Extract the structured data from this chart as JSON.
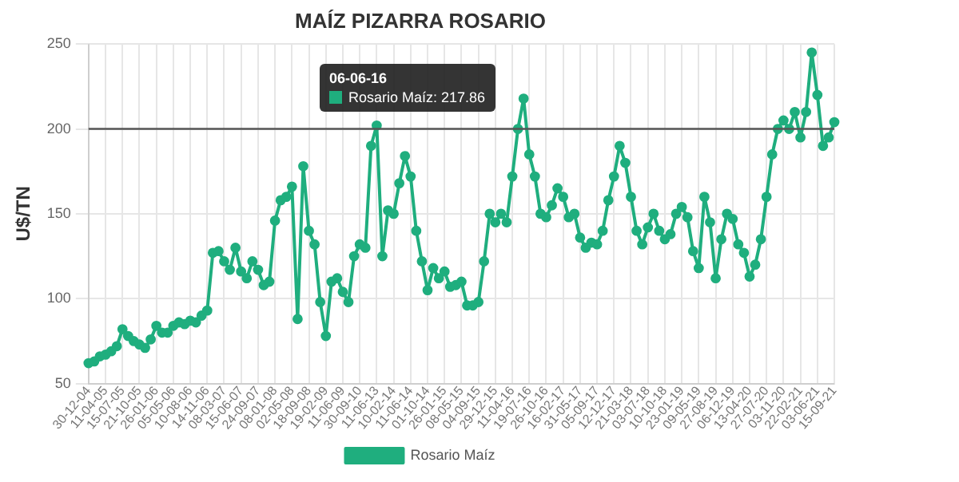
{
  "chart_data": {
    "type": "line",
    "title": "MAÍZ PIZARRA ROSARIO",
    "ylabel": "U$/TN",
    "categories": [
      "30-12-04",
      null,
      null,
      "11-04-05",
      null,
      null,
      "15-07-05",
      null,
      null,
      "21-10-05",
      null,
      null,
      "26-01-06",
      null,
      null,
      "05-05-06",
      null,
      null,
      "10-08-06",
      null,
      null,
      "14-11-06",
      null,
      null,
      "08-03-07",
      null,
      null,
      "15-06-07",
      null,
      null,
      "24-09-07",
      null,
      null,
      "08-01-08",
      null,
      null,
      "02-05-08",
      null,
      null,
      "18-09-08",
      null,
      null,
      "19-02-09",
      null,
      null,
      "11-06-09",
      null,
      null,
      "30-09-10",
      null,
      null,
      "11-06-13",
      null,
      null,
      "10-02-14",
      null,
      null,
      "11-06-14",
      null,
      null,
      "01-10-14",
      null,
      null,
      "26-01-15",
      null,
      null,
      "08-05-15",
      null,
      null,
      "04-09-15",
      null,
      null,
      "29-12-15",
      null,
      null,
      "11-04-16",
      null,
      null,
      "19-07-16",
      null,
      null,
      "26-10-16",
      null,
      null,
      "16-02-17",
      null,
      null,
      "31-05-17",
      null,
      null,
      "05-09-17",
      null,
      null,
      "12-12-17",
      null,
      null,
      "21-03-18",
      null,
      null,
      "03-07-18",
      null,
      null,
      "10-10-18",
      null,
      null,
      "23-01-19",
      null,
      null,
      "09-05-19",
      null,
      null,
      "27-08-19",
      null,
      null,
      "06-12-19",
      null,
      null,
      "13-04-20",
      null,
      null,
      "27-07-20",
      null,
      null,
      "03-11-20",
      null,
      null,
      "22-02-21",
      null,
      null,
      "03-06-21",
      null,
      null,
      "15-09-21"
    ],
    "series": [
      {
        "name": "Rosario Maíz",
        "color": "#1fae7e",
        "values": [
          62,
          63,
          66,
          67,
          69,
          72,
          82,
          78,
          75,
          73,
          71,
          76,
          84,
          80,
          80,
          84,
          86,
          85,
          87,
          86,
          90,
          93,
          127,
          128,
          122,
          117,
          130,
          116,
          112,
          122,
          117,
          108,
          110,
          146,
          158,
          160,
          166,
          88,
          178,
          140,
          132,
          98,
          78,
          110,
          112,
          104,
          98,
          125,
          132,
          130,
          190,
          202,
          125,
          152,
          150,
          168,
          184,
          172,
          140,
          122,
          105,
          118,
          112,
          116,
          107,
          108,
          110,
          96,
          96,
          98,
          122,
          150,
          145,
          150,
          145,
          172,
          200,
          217.86,
          185,
          172,
          150,
          148,
          155,
          165,
          160,
          148,
          150,
          136,
          130,
          133,
          132,
          140,
          158,
          172,
          190,
          180,
          160,
          140,
          132,
          142,
          150,
          140,
          135,
          138,
          150,
          154,
          148,
          128,
          118,
          160,
          145,
          112,
          135,
          150,
          147,
          132,
          127,
          113,
          120,
          135,
          160,
          185,
          200,
          205,
          200,
          210,
          195,
          210,
          245,
          220,
          190,
          195,
          204
        ]
      }
    ],
    "ylim": [
      50,
      250
    ],
    "yticks": [
      50,
      100,
      150,
      200,
      250
    ],
    "ref_lines": [
      {
        "axis": "y",
        "value": 200,
        "color": "#555555"
      }
    ],
    "annotations": [
      "06-06-16",
      "Rosario Maíz: 217.86"
    ],
    "grid": true,
    "legend": "bottom",
    "marker": "circle",
    "line_style": "solid"
  }
}
